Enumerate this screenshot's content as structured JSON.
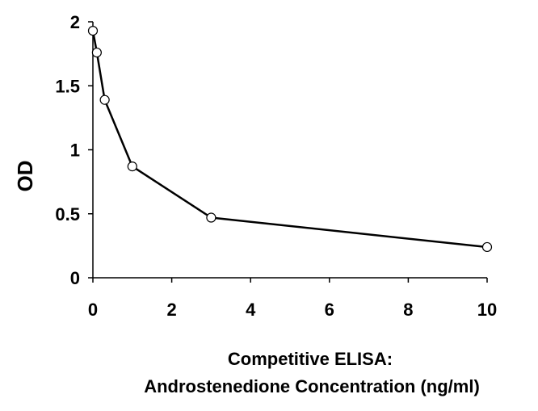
{
  "chart_data": {
    "type": "line",
    "title": "",
    "xlabel_lines": [
      "Competitive ELISA:",
      "Androstenedione Concentration (ng/ml)"
    ],
    "ylabel": "OD",
    "xlim": [
      0,
      10
    ],
    "ylim": [
      0,
      2
    ],
    "xticks": [
      0,
      2,
      4,
      6,
      8,
      10
    ],
    "yticks": [
      0,
      0.5,
      1,
      1.5,
      2
    ],
    "ytick_labels": [
      "0",
      "0.5",
      "1",
      "1.5",
      "2"
    ],
    "grid": false,
    "legend": "none",
    "series": [
      {
        "x": [
          0,
          0.1,
          0.3,
          1,
          3,
          10
        ],
        "y": [
          1.93,
          1.76,
          1.39,
          0.87,
          0.47,
          0.24
        ],
        "line_color": "#000000",
        "marker": "open-circle"
      }
    ]
  }
}
